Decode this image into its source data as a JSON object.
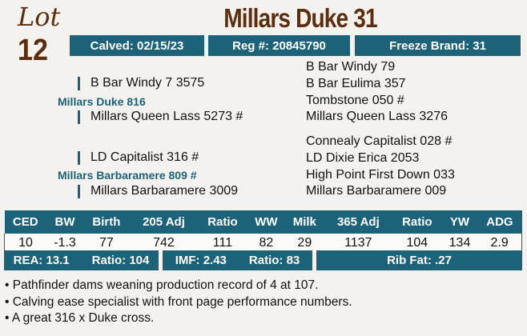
{
  "lot": {
    "label": "Lot",
    "number": "12"
  },
  "title": "Millars Duke 31",
  "header": {
    "calved": "Calved: 02/15/23",
    "reg": "Reg #: 20845790",
    "freeze_brand": "Freeze Brand: 31"
  },
  "pedigree": {
    "sire": {
      "name": "Millars Duke 816",
      "sire": "B Bar Windy 7 3575",
      "dam": "Millars Queen Lass 5273 #",
      "right": [
        "B Bar Windy 79",
        "B Bar Eulima 357",
        "Tombstone 050 #",
        "Millars Queen Lass 3276"
      ]
    },
    "dam": {
      "name": "Millars Barbaramere 809 #",
      "sire": "LD Capitalist 316 #",
      "dam": "Millars Barbaramere 3009",
      "right": [
        "Connealy Capitalist 028 #",
        "LD Dixie Erica 2053",
        "High Point First Down 033",
        "Millars Barbaramere 009"
      ]
    }
  },
  "stats": {
    "headers": [
      "CED",
      "BW",
      "Birth",
      "205 Adj",
      "Ratio",
      "WW",
      "Milk",
      "365 Adj",
      "Ratio",
      "YW",
      "ADG"
    ],
    "values": [
      "10",
      "-1.3",
      "77",
      "742",
      "111",
      "82",
      "29",
      "1137",
      "104",
      "134",
      "2.9"
    ]
  },
  "carcass": {
    "rea": "REA: 13.1",
    "rea_ratio": "Ratio: 104",
    "imf": "IMF: 2.43",
    "imf_ratio": "Ratio: 83",
    "rib_fat": "Rib Fat: .27"
  },
  "notes": [
    "• Pathfinder dams weaning production record of 4 at 107.",
    "• Calving ease specialist with front page performance numbers.",
    "• A great 316 x Duke cross."
  ],
  "colors": {
    "teal": "#1c6379",
    "brown": "#5a2e0e"
  }
}
